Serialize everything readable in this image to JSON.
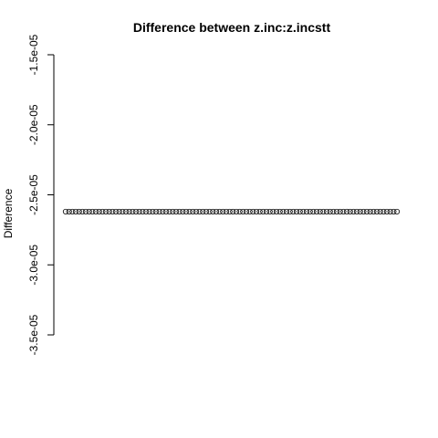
{
  "chart_data": {
    "type": "scatter",
    "title": "Difference between z.inc:z.incstt",
    "xlabel": "",
    "ylabel": "Difference",
    "ylim": [
      -3.5e-05,
      -1.5e-05
    ],
    "y_ticks": [
      -3.5e-05,
      -3e-05,
      -2.5e-05,
      -2e-05,
      -1.5e-05
    ],
    "y_tick_labels": [
      "-3.5e-05",
      "-3.0e-05",
      "-2.5e-05",
      "-2.0e-05",
      "-1.5e-05"
    ],
    "x_axis_shown": false,
    "point_count": 100,
    "point_value": -2.62e-05,
    "marker": "open-circle",
    "color": "#000000"
  }
}
